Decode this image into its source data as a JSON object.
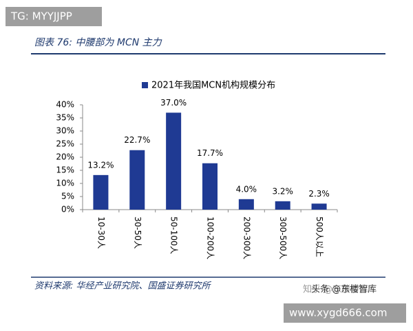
{
  "watermark_top": "TG: MYYJJPP",
  "header": {
    "title": "图表 76: 中腰部为 MCN 主力"
  },
  "chart_data": {
    "type": "bar",
    "legend": "2021年我国MCN机构规模分布",
    "categories": [
      "10-30人",
      "30-50人",
      "50-100人",
      "100-200人",
      "200-300人",
      "300-500人",
      "500人以上"
    ],
    "series": [
      {
        "name": "2021年我国MCN机构规模分布",
        "color": "#1f3a93",
        "values": [
          13.2,
          22.7,
          37.0,
          17.7,
          4.0,
          3.2,
          2.3
        ],
        "value_labels": [
          "13.2%",
          "22.7%",
          "37.0%",
          "17.7%",
          "4.0%",
          "3.2%",
          "2.3%"
        ]
      }
    ],
    "ylim": [
      0,
      40
    ],
    "yticks": [
      {
        "value": 0,
        "label": "0%"
      },
      {
        "value": 5,
        "label": "5%"
      },
      {
        "value": 10,
        "label": "10%"
      },
      {
        "value": 15,
        "label": "15%"
      },
      {
        "value": 20,
        "label": "20%"
      },
      {
        "value": 25,
        "label": "25%"
      },
      {
        "value": 30,
        "label": "30%"
      },
      {
        "value": 35,
        "label": "35%"
      },
      {
        "value": 40,
        "label": "40%"
      }
    ],
    "grid": false
  },
  "source": "资料来源: 华经产业研究院、国盛证券研究所",
  "watermark_zhihu": "知乎 @东楼智库",
  "watermark_toutiao": "头条 @东楼智库",
  "watermark_bottom": "www.xygd666.com"
}
